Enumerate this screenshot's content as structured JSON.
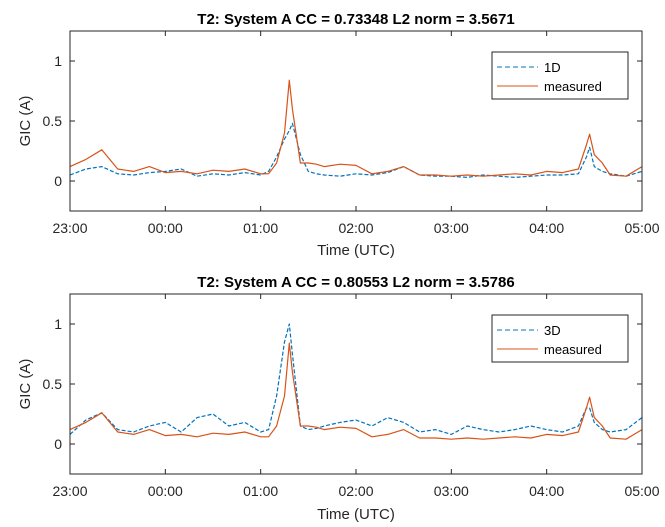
{
  "chart_data": [
    {
      "type": "line",
      "title": "T2: System A  CC = 0.73348  L2 norm = 3.5671",
      "xlabel": "Time (UTC)",
      "ylabel": "GIC (A)",
      "xlim": [
        "23:00",
        "05:00"
      ],
      "ylim": [
        -0.25,
        1.25
      ],
      "xticks": [
        "23:00",
        "00:00",
        "01:00",
        "02:00",
        "03:00",
        "04:00",
        "05:00"
      ],
      "yticks": [
        "0",
        "0.5",
        "1"
      ],
      "legend_position": "top-right",
      "series": [
        {
          "name": "1D",
          "style": "dashed",
          "color": "#0072BD",
          "x": [
            "23:00",
            "23:10",
            "23:20",
            "23:30",
            "23:40",
            "23:50",
            "00:00",
            "00:10",
            "00:20",
            "00:30",
            "00:40",
            "00:50",
            "01:00",
            "01:05",
            "01:10",
            "01:15",
            "01:18",
            "01:20",
            "01:25",
            "01:30",
            "01:35",
            "01:40",
            "01:50",
            "02:00",
            "02:10",
            "02:20",
            "02:30",
            "02:40",
            "02:50",
            "03:00",
            "03:10",
            "03:20",
            "03:30",
            "03:40",
            "03:50",
            "04:00",
            "04:10",
            "04:20",
            "04:25",
            "04:27",
            "04:30",
            "04:35",
            "04:40",
            "04:50",
            "05:00"
          ],
          "y": [
            0.05,
            0.1,
            0.12,
            0.06,
            0.05,
            0.07,
            0.08,
            0.1,
            0.04,
            0.06,
            0.05,
            0.07,
            0.05,
            0.08,
            0.2,
            0.35,
            0.42,
            0.48,
            0.22,
            0.08,
            0.06,
            0.05,
            0.04,
            0.06,
            0.05,
            0.07,
            0.12,
            0.05,
            0.04,
            0.04,
            0.03,
            0.05,
            0.04,
            0.03,
            0.04,
            0.05,
            0.05,
            0.06,
            0.2,
            0.28,
            0.12,
            0.08,
            0.06,
            0.04,
            0.08
          ]
        },
        {
          "name": "measured",
          "style": "solid",
          "color": "#D95319",
          "x": [
            "23:00",
            "23:10",
            "23:20",
            "23:30",
            "23:40",
            "23:50",
            "00:00",
            "00:10",
            "00:20",
            "00:30",
            "00:40",
            "00:50",
            "01:00",
            "01:05",
            "01:10",
            "01:15",
            "01:18",
            "01:20",
            "01:25",
            "01:30",
            "01:35",
            "01:40",
            "01:50",
            "02:00",
            "02:10",
            "02:20",
            "02:30",
            "02:40",
            "02:50",
            "03:00",
            "03:10",
            "03:20",
            "03:30",
            "03:40",
            "03:50",
            "04:00",
            "04:10",
            "04:20",
            "04:25",
            "04:27",
            "04:30",
            "04:35",
            "04:40",
            "04:50",
            "05:00"
          ],
          "y": [
            0.12,
            0.18,
            0.26,
            0.1,
            0.08,
            0.12,
            0.07,
            0.08,
            0.06,
            0.09,
            0.08,
            0.1,
            0.06,
            0.06,
            0.15,
            0.4,
            0.84,
            0.6,
            0.15,
            0.15,
            0.14,
            0.12,
            0.14,
            0.13,
            0.06,
            0.08,
            0.12,
            0.05,
            0.05,
            0.04,
            0.05,
            0.04,
            0.05,
            0.06,
            0.05,
            0.08,
            0.07,
            0.1,
            0.3,
            0.39,
            0.22,
            0.15,
            0.05,
            0.04,
            0.12
          ]
        }
      ]
    },
    {
      "type": "line",
      "title": "T2: System A   CC = 0.80553  L2 norm = 3.5786",
      "xlabel": "Time (UTC)",
      "ylabel": "GIC (A)",
      "xlim": [
        "23:00",
        "05:00"
      ],
      "ylim": [
        -0.25,
        1.25
      ],
      "xticks": [
        "23:00",
        "00:00",
        "01:00",
        "02:00",
        "03:00",
        "04:00",
        "05:00"
      ],
      "yticks": [
        "0",
        "0.5",
        "1"
      ],
      "legend_position": "top-right",
      "series": [
        {
          "name": "3D",
          "style": "dashed",
          "color": "#0072BD",
          "x": [
            "23:00",
            "23:10",
            "23:20",
            "23:30",
            "23:40",
            "23:50",
            "00:00",
            "00:10",
            "00:20",
            "00:30",
            "00:40",
            "00:50",
            "01:00",
            "01:05",
            "01:10",
            "01:15",
            "01:18",
            "01:20",
            "01:25",
            "01:30",
            "01:35",
            "01:40",
            "01:50",
            "02:00",
            "02:10",
            "02:20",
            "02:30",
            "02:40",
            "02:50",
            "03:00",
            "03:10",
            "03:20",
            "03:30",
            "03:40",
            "03:50",
            "04:00",
            "04:10",
            "04:20",
            "04:25",
            "04:27",
            "04:30",
            "04:35",
            "04:40",
            "04:50",
            "05:00"
          ],
          "y": [
            0.08,
            0.2,
            0.26,
            0.12,
            0.1,
            0.15,
            0.18,
            0.1,
            0.22,
            0.25,
            0.15,
            0.18,
            0.1,
            0.12,
            0.4,
            0.85,
            1.0,
            0.75,
            0.15,
            0.12,
            0.13,
            0.15,
            0.18,
            0.2,
            0.15,
            0.22,
            0.18,
            0.1,
            0.12,
            0.08,
            0.15,
            0.12,
            0.1,
            0.12,
            0.15,
            0.12,
            0.1,
            0.15,
            0.3,
            0.3,
            0.18,
            0.12,
            0.1,
            0.12,
            0.22
          ]
        },
        {
          "name": "measured",
          "style": "solid",
          "color": "#D95319",
          "x": [
            "23:00",
            "23:10",
            "23:20",
            "23:30",
            "23:40",
            "23:50",
            "00:00",
            "00:10",
            "00:20",
            "00:30",
            "00:40",
            "00:50",
            "01:00",
            "01:05",
            "01:10",
            "01:15",
            "01:18",
            "01:20",
            "01:25",
            "01:30",
            "01:35",
            "01:40",
            "01:50",
            "02:00",
            "02:10",
            "02:20",
            "02:30",
            "02:40",
            "02:50",
            "03:00",
            "03:10",
            "03:20",
            "03:30",
            "03:40",
            "03:50",
            "04:00",
            "04:10",
            "04:20",
            "04:25",
            "04:27",
            "04:30",
            "04:35",
            "04:40",
            "04:50",
            "05:00"
          ],
          "y": [
            0.12,
            0.18,
            0.26,
            0.1,
            0.08,
            0.12,
            0.07,
            0.08,
            0.06,
            0.09,
            0.08,
            0.1,
            0.06,
            0.06,
            0.15,
            0.4,
            0.84,
            0.6,
            0.15,
            0.15,
            0.14,
            0.12,
            0.14,
            0.13,
            0.06,
            0.08,
            0.12,
            0.05,
            0.05,
            0.04,
            0.05,
            0.04,
            0.05,
            0.06,
            0.05,
            0.08,
            0.07,
            0.1,
            0.3,
            0.39,
            0.22,
            0.15,
            0.05,
            0.04,
            0.12
          ]
        }
      ]
    }
  ]
}
